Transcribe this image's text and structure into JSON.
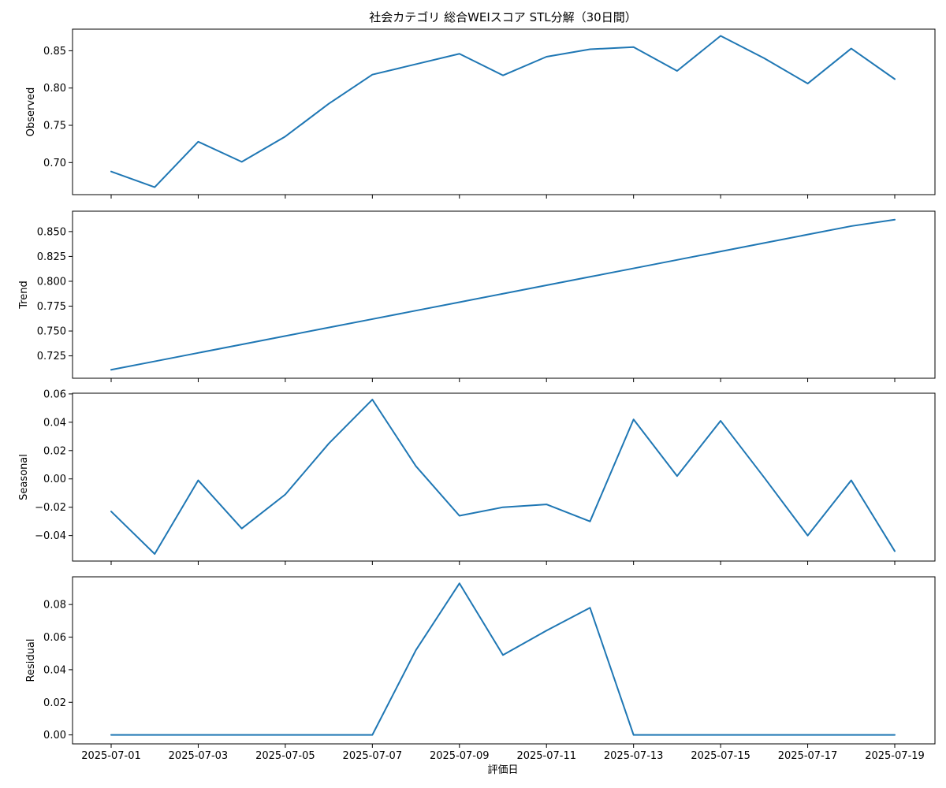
{
  "chart_data": {
    "type": "line",
    "title": "社会カテゴリ 総合WEIスコア STL分解（30日間）",
    "xlabel": "評価日",
    "line_color": "#1f77b4",
    "x": [
      "2025-07-01",
      "2025-07-02",
      "2025-07-03",
      "2025-07-04",
      "2025-07-05",
      "2025-07-06",
      "2025-07-07",
      "2025-07-08",
      "2025-07-09",
      "2025-07-10",
      "2025-07-11",
      "2025-07-12",
      "2025-07-13",
      "2025-07-14",
      "2025-07-15",
      "2025-07-16",
      "2025-07-17",
      "2025-07-18",
      "2025-07-19"
    ],
    "x_tick_labels": [
      "2025-07-01",
      "2025-07-03",
      "2025-07-05",
      "2025-07-07",
      "2025-07-09",
      "2025-07-11",
      "2025-07-13",
      "2025-07-15",
      "2025-07-17",
      "2025-07-19"
    ],
    "panels": [
      {
        "ylabel": "Observed",
        "ylim": [
          0.657,
          0.879
        ],
        "yticks": [
          0.7,
          0.75,
          0.8,
          0.85
        ],
        "ytick_labels": [
          "0.70",
          "0.75",
          "0.80",
          "0.85"
        ],
        "values": [
          0.688,
          0.667,
          0.728,
          0.701,
          0.735,
          0.779,
          0.818,
          0.832,
          0.846,
          0.817,
          0.842,
          0.852,
          0.855,
          0.823,
          0.87,
          0.84,
          0.806,
          0.853,
          0.812
        ]
      },
      {
        "ylabel": "Trend",
        "ylim": [
          0.7025,
          0.8705
        ],
        "yticks": [
          0.725,
          0.75,
          0.775,
          0.8,
          0.825,
          0.85
        ],
        "ytick_labels": [
          "0.725",
          "0.750",
          "0.775",
          "0.800",
          "0.825",
          "0.850"
        ],
        "values": [
          0.711,
          0.7195,
          0.728,
          0.7365,
          0.745,
          0.7535,
          0.762,
          0.7705,
          0.779,
          0.7875,
          0.796,
          0.8045,
          0.813,
          0.8215,
          0.83,
          0.8385,
          0.847,
          0.8555,
          0.862
        ]
      },
      {
        "ylabel": "Seasonal",
        "ylim": [
          -0.058,
          0.0605
        ],
        "yticks": [
          -0.04,
          -0.02,
          0.0,
          0.02,
          0.04,
          0.06
        ],
        "ytick_labels": [
          "−0.04",
          "−0.02",
          "0.00",
          "0.02",
          "0.04",
          "0.06"
        ],
        "values": [
          -0.023,
          -0.053,
          -0.001,
          -0.035,
          -0.011,
          0.025,
          0.056,
          0.009,
          -0.026,
          -0.02,
          -0.018,
          -0.03,
          0.042,
          0.002,
          0.041,
          0.001,
          -0.04,
          -0.001,
          -0.051
        ]
      },
      {
        "ylabel": "Residual",
        "ylim": [
          -0.0055,
          0.097
        ],
        "yticks": [
          0.0,
          0.02,
          0.04,
          0.06,
          0.08
        ],
        "ytick_labels": [
          "0.00",
          "0.02",
          "0.04",
          "0.06",
          "0.08"
        ],
        "values": [
          0,
          0,
          0,
          0,
          0,
          0,
          0,
          0.052,
          0.093,
          0.049,
          0.064,
          0.078,
          0,
          0,
          0,
          0,
          0,
          0,
          0
        ]
      }
    ]
  }
}
